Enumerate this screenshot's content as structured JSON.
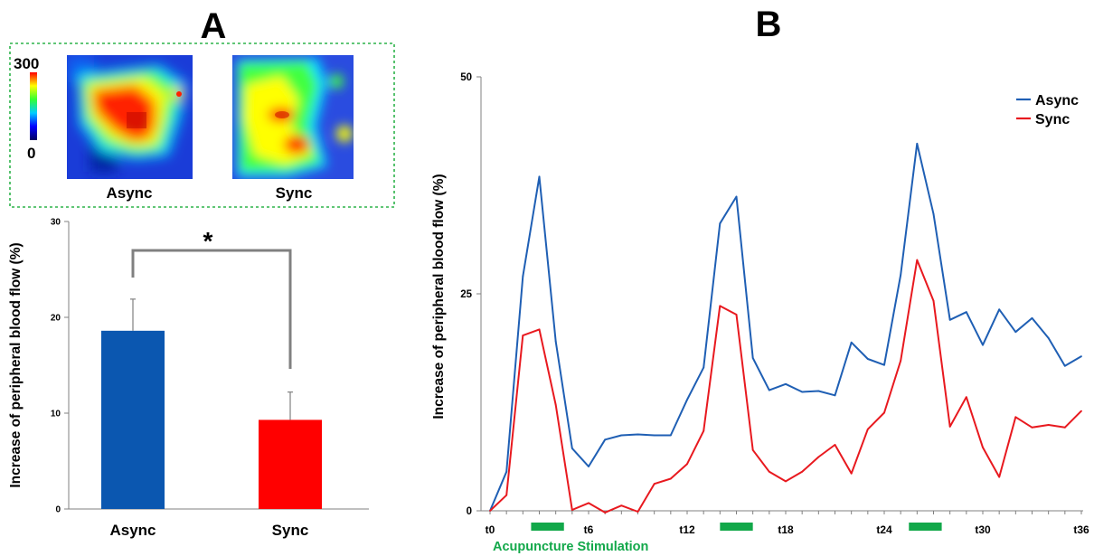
{
  "panels": {
    "a_label": "A",
    "b_label": "B"
  },
  "heatmaps": {
    "scale_max": "300",
    "scale_min": "0",
    "items": [
      {
        "label": "Async"
      },
      {
        "label": "Sync"
      }
    ]
  },
  "colors": {
    "async": "#1F5FB4",
    "sync": "#E8191F",
    "bar_async": "#0B57B0",
    "bar_sync": "#FF0000",
    "stimulation": "#12A84A",
    "heatmap_border": "#2DB34A",
    "bracket": "#808080"
  },
  "chart_data": [
    {
      "type": "bar",
      "categories": [
        "Async",
        "Sync"
      ],
      "values": [
        18.6,
        9.3
      ],
      "errors": [
        3.3,
        2.9
      ],
      "ylabel": "Increase of peripheral blood flow (%)",
      "ylim": [
        0,
        30
      ],
      "yticks": [
        "0",
        "10",
        "20",
        "30"
      ],
      "significance": "*"
    },
    {
      "type": "line",
      "ylabel": "Increase of peripheral blood flow (%)",
      "ylim": [
        0,
        50
      ],
      "yticks": [
        "0",
        "25",
        "50"
      ],
      "xticks": [
        "t0",
        "t6",
        "t12",
        "t18",
        "t24",
        "t30",
        "t36"
      ],
      "x": [
        0,
        1,
        2,
        3,
        4,
        5,
        6,
        7,
        8,
        9,
        10,
        11,
        12,
        13,
        14,
        15,
        16,
        17,
        18,
        19,
        20,
        21,
        22,
        23,
        24,
        25,
        26,
        27,
        28,
        29,
        30,
        31,
        32,
        33,
        34,
        35,
        36
      ],
      "series": [
        {
          "name": "Async",
          "values": [
            0,
            4.5,
            27,
            38.5,
            19.5,
            7.2,
            5.1,
            8.2,
            8.7,
            8.8,
            8.7,
            8.7,
            12.8,
            16.5,
            33.1,
            36.2,
            17.6,
            13.9,
            14.6,
            13.7,
            13.8,
            13.3,
            19.4,
            17.5,
            16.8,
            27.2,
            42.3,
            34.2,
            22,
            22.9,
            19.1,
            23.2,
            20.6,
            22.2,
            19.9,
            16.7,
            17.8
          ]
        },
        {
          "name": "Sync",
          "values": [
            0,
            1.8,
            20.2,
            20.9,
            12.2,
            0.1,
            0.9,
            -0.2,
            0.6,
            -0.1,
            3.1,
            3.7,
            5.4,
            9.2,
            23.6,
            22.6,
            7,
            4.5,
            3.4,
            4.5,
            6.2,
            7.6,
            4.3,
            9.4,
            11.3,
            17.3,
            28.9,
            24.2,
            9.7,
            13.1,
            7.3,
            3.9,
            10.8,
            9.6,
            9.9,
            9.6,
            11.5
          ]
        }
      ],
      "legend": "top-right",
      "annotation": "Acupuncture Stimulation",
      "stimulation_periods": [
        [
          2.5,
          4.5
        ],
        [
          14,
          16
        ],
        [
          25.5,
          27.5
        ]
      ]
    }
  ]
}
